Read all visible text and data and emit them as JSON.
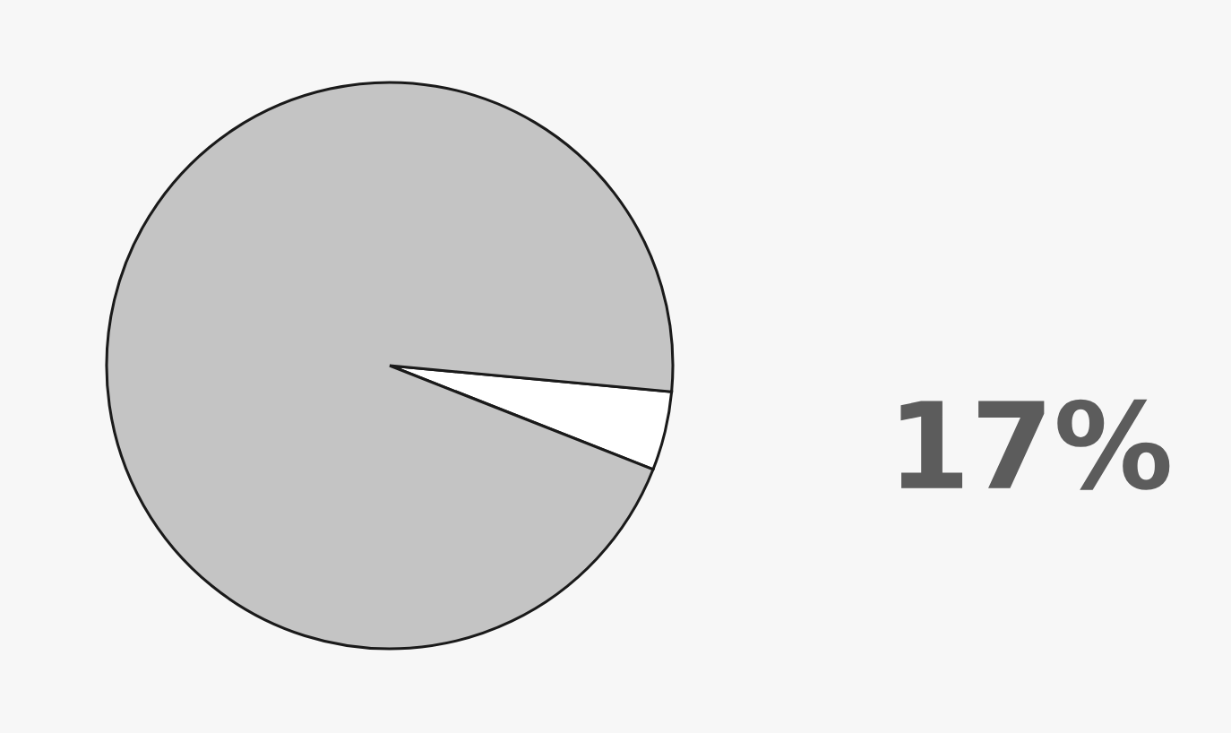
{
  "chart_data": {
    "type": "pie",
    "categories": [
      null,
      null
    ],
    "values": [
      4.5,
      95.5
    ],
    "colors": [
      "#ffffff",
      "#c4c4c4"
    ],
    "annotations": [
      "17%"
    ]
  }
}
